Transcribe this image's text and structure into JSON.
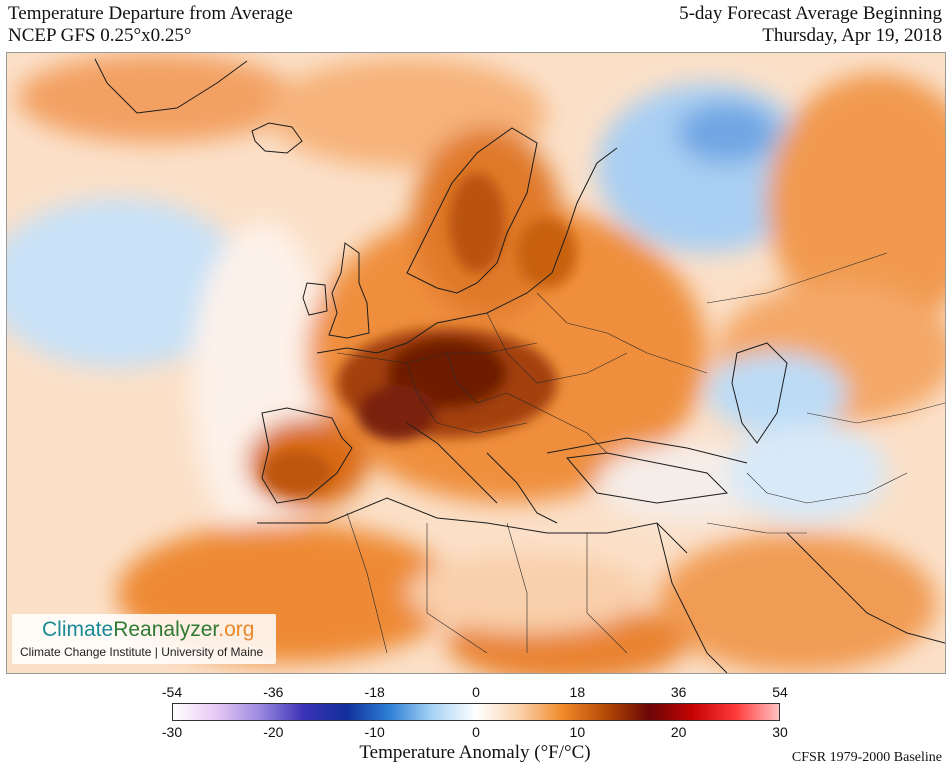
{
  "header": {
    "title": "Temperature Departure from Average",
    "model": "NCEP GFS 0.25°x0.25°",
    "forecast_label": "5-day Forecast Average Beginning",
    "date": "Thursday, Apr 19, 2018"
  },
  "logo": {
    "part_a": "Climate",
    "part_b": "Reanalyzer",
    "part_c": ".org",
    "subtitle": "Climate Change Institute | University of Maine"
  },
  "scale": {
    "fahrenheit_ticks": [
      "-54",
      "-36",
      "-18",
      "0",
      "18",
      "36",
      "54"
    ],
    "celsius_ticks": [
      "-30",
      "-20",
      "-10",
      "0",
      "10",
      "20",
      "30"
    ],
    "title": "Temperature Anomaly (°F/°C)",
    "colors": [
      "#ffffff",
      "#e7c8f4",
      "#9b8ae0",
      "#3d33b8",
      "#102f9a",
      "#2e7fd6",
      "#a8d4f5",
      "#ffffff",
      "#fbd2ad",
      "#f08a2a",
      "#b44a06",
      "#6b0606",
      "#c50303",
      "#ff3a3a",
      "#ffc2c2"
    ]
  },
  "baseline": "CFSR 1979-2000 Baseline",
  "map": {
    "colors": {
      "ocean_pale": "#fbe0c8",
      "light_orange": "#f7b67d",
      "orange": "#ef8a35",
      "dark_orange": "#d7650f",
      "brown": "#9a3a05",
      "dark_red": "#6e1406",
      "blue_light": "#bcdcf6",
      "blue": "#8fc2ef",
      "white": "#fdf6f1"
    }
  }
}
